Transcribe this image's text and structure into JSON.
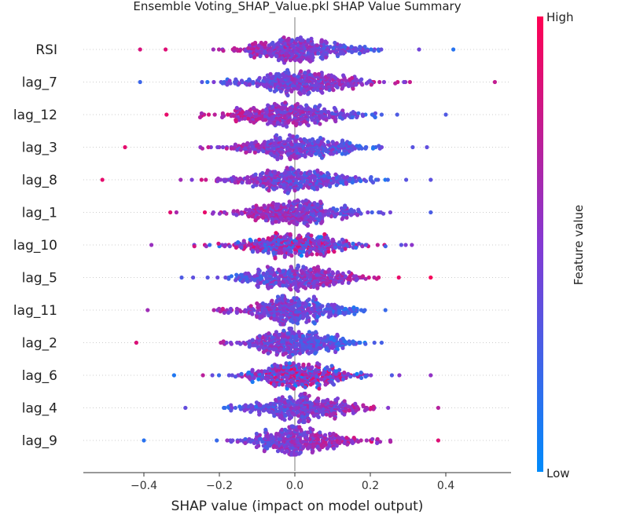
{
  "chart_data": {
    "type": "scatter",
    "subtype": "shap-beeswarm",
    "title": "Ensemble Voting_SHAP_Value.pkl SHAP Value Summary",
    "xlabel": "SHAP value (impact on model output)",
    "xlim": [
      -0.56,
      0.575
    ],
    "xticks": [
      -0.4,
      -0.2,
      0.0,
      0.2,
      0.4
    ],
    "xtick_labels": [
      "−0.4",
      "−0.2",
      "0.0",
      "0.2",
      "0.4"
    ],
    "colorbar": {
      "label": "Feature value",
      "high_label": "High",
      "low_label": "Low",
      "high_color": "#ff0052",
      "low_color": "#008bfb"
    },
    "features": [
      {
        "name": "RSI",
        "min": -0.41,
        "max": 0.42,
        "spread": 0.09,
        "center": 0.01,
        "corr": -1
      },
      {
        "name": "lag_7",
        "min": -0.41,
        "max": 0.53,
        "spread": 0.09,
        "center": 0.02,
        "corr": 1
      },
      {
        "name": "lag_12",
        "min": -0.34,
        "max": 0.4,
        "spread": 0.1,
        "center": -0.01,
        "corr": -1
      },
      {
        "name": "lag_3",
        "min": -0.45,
        "max": 0.35,
        "spread": 0.09,
        "center": 0.01,
        "corr": -1
      },
      {
        "name": "lag_8",
        "min": -0.51,
        "max": 0.36,
        "spread": 0.1,
        "center": 0.0,
        "corr": -1
      },
      {
        "name": "lag_1",
        "min": -0.33,
        "max": 0.36,
        "spread": 0.09,
        "center": 0.01,
        "corr": -1
      },
      {
        "name": "lag_10",
        "min": -0.38,
        "max": 0.31,
        "spread": 0.09,
        "center": 0.0,
        "corr": 0
      },
      {
        "name": "lag_5",
        "min": -0.3,
        "max": 0.36,
        "spread": 0.09,
        "center": 0.01,
        "corr": 1
      },
      {
        "name": "lag_11",
        "min": -0.39,
        "max": 0.24,
        "spread": 0.08,
        "center": 0.0,
        "corr": -1
      },
      {
        "name": "lag_2",
        "min": -0.42,
        "max": 0.23,
        "spread": 0.08,
        "center": 0.0,
        "corr": -1
      },
      {
        "name": "lag_6",
        "min": -0.32,
        "max": 0.36,
        "spread": 0.08,
        "center": 0.01,
        "corr": 0
      },
      {
        "name": "lag_4",
        "min": -0.29,
        "max": 0.38,
        "spread": 0.09,
        "center": 0.02,
        "corr": 1
      },
      {
        "name": "lag_9",
        "min": -0.4,
        "max": 0.38,
        "spread": 0.08,
        "center": 0.01,
        "corr": 1
      }
    ]
  }
}
